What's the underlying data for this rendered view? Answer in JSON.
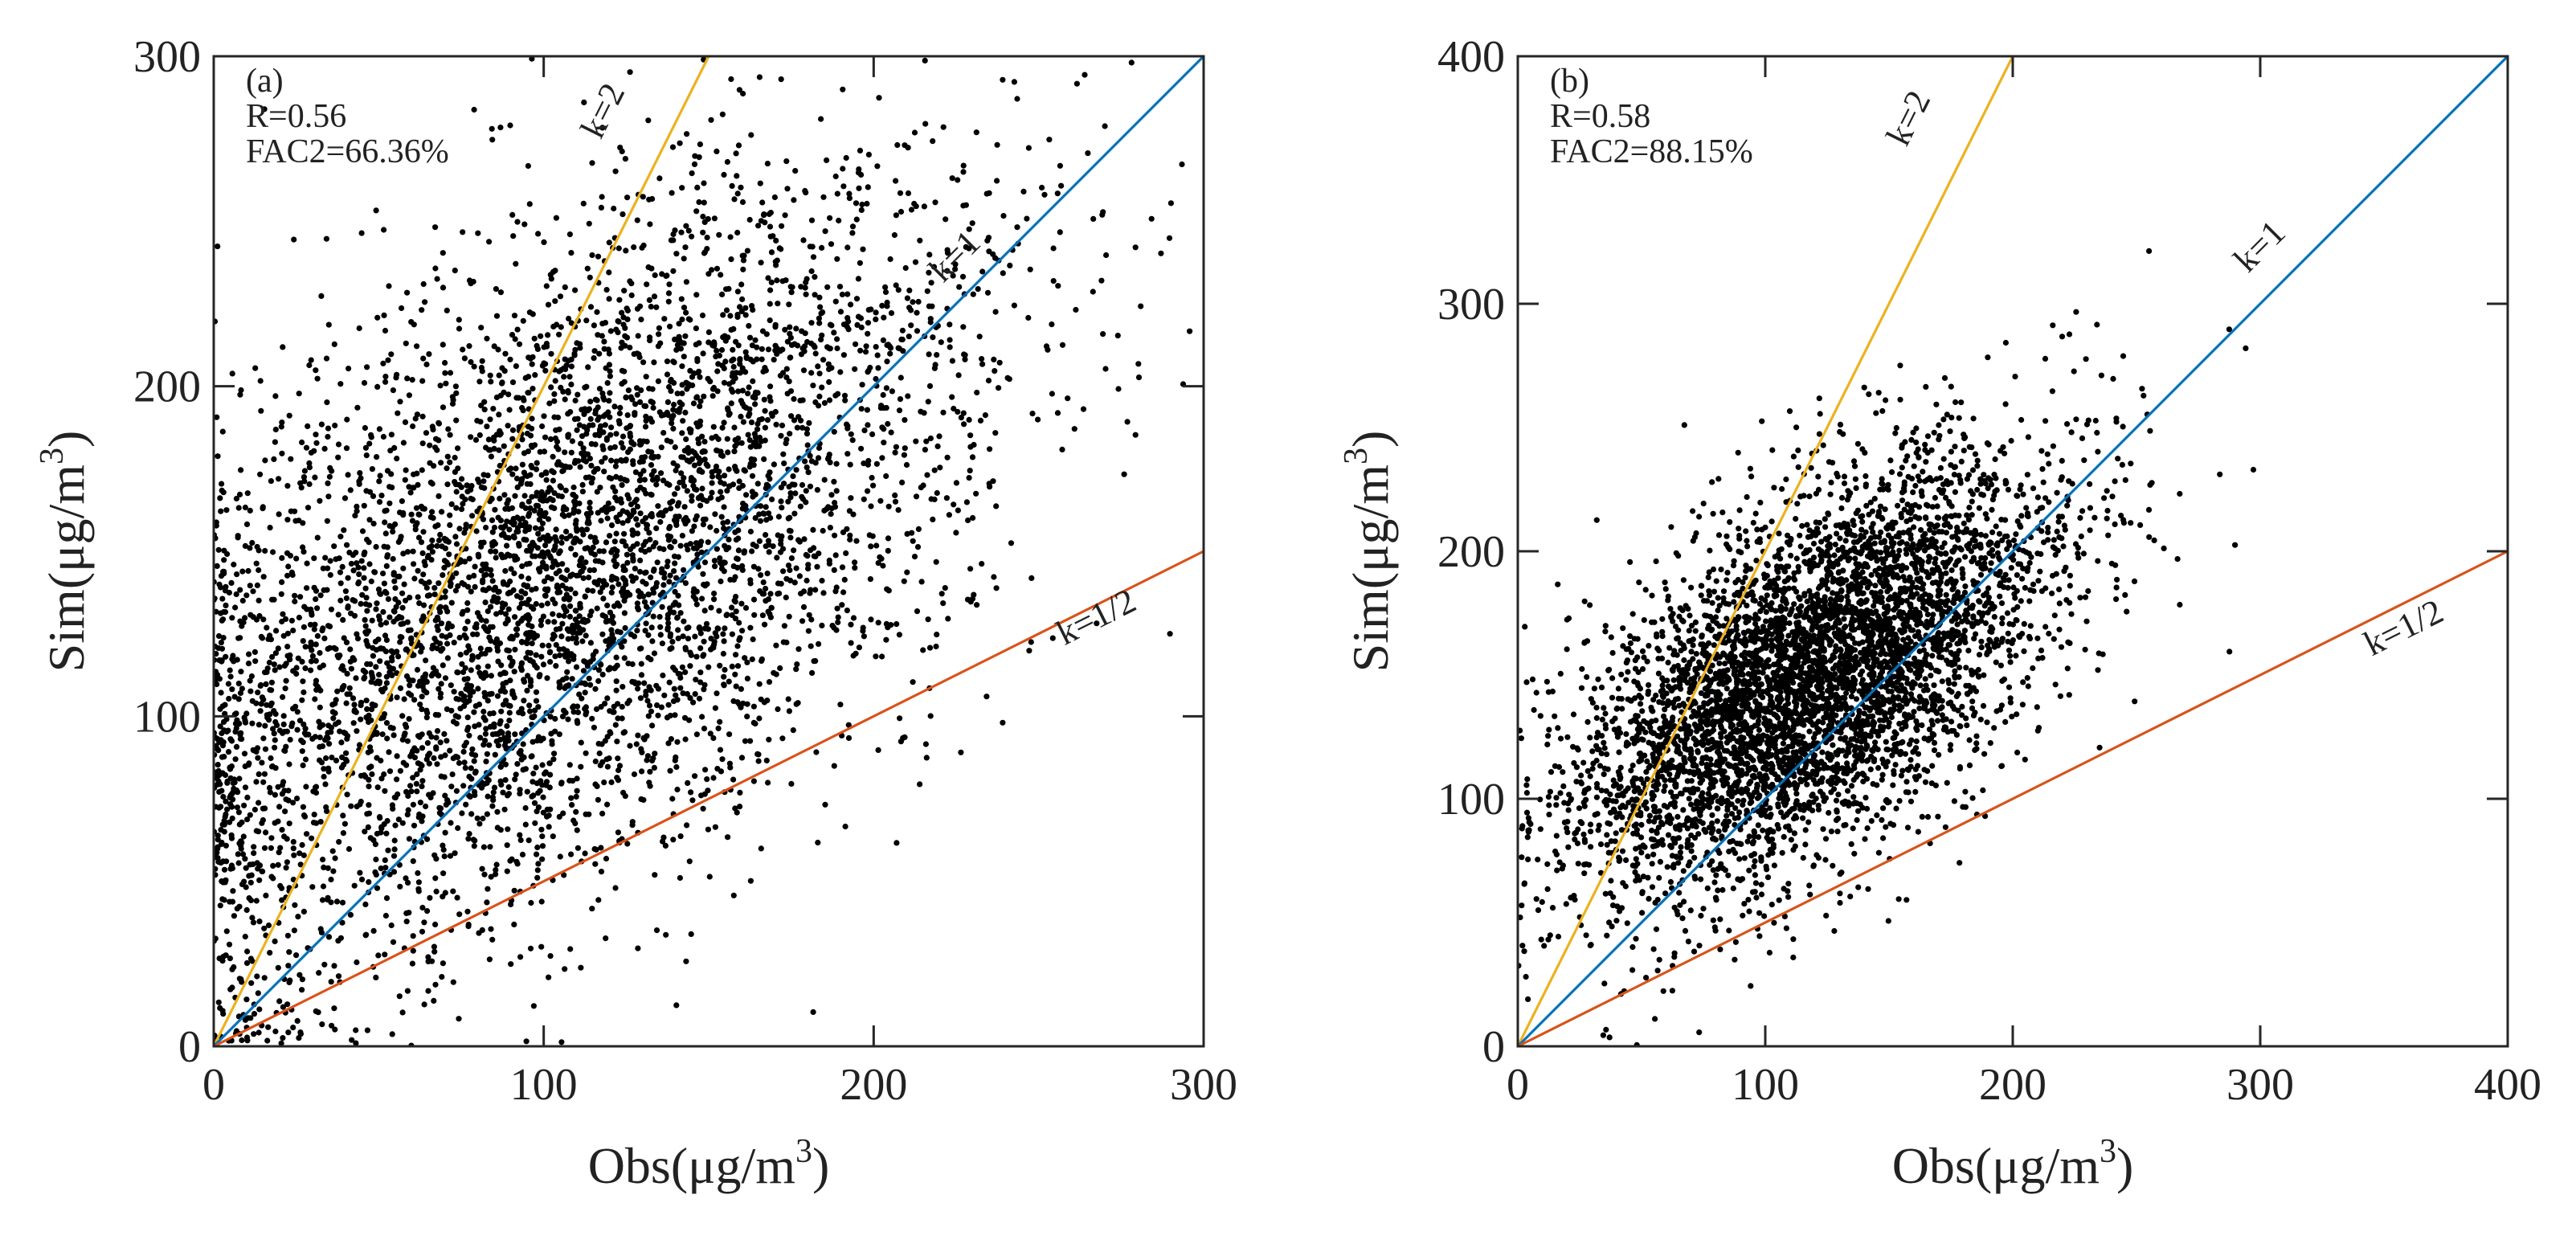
{
  "colors": {
    "points": "#000000",
    "k2_line": "#EDB120",
    "k1_line": "#0072BD",
    "khalf_line": "#D95319",
    "axes": "#262626"
  },
  "chart_data": [
    {
      "type": "scatter",
      "panel_label": "(a)",
      "xlabel": "Obs(μg/m",
      "ylabel": "Sim(μg/m",
      "unit_sup": "3",
      "unit_close": ")",
      "xlim": [
        0,
        300
      ],
      "ylim": [
        0,
        300
      ],
      "xticks": [
        0,
        100,
        200,
        300
      ],
      "yticks": [
        0,
        100,
        200,
        300
      ],
      "xtick_labels": [
        "0",
        "100",
        "200",
        "300"
      ],
      "ytick_labels": [
        "0",
        "100",
        "200",
        "300"
      ],
      "stats": {
        "r": "R=0.56",
        "fac2": "FAC2=66.36%"
      },
      "reference_lines": [
        {
          "key": "k2",
          "label": "k=2",
          "slope": 2,
          "label_x": 121,
          "label_y": 282
        },
        {
          "key": "k1",
          "label": "k=1",
          "slope": 1,
          "label_x": 227,
          "label_y": 237
        },
        {
          "key": "khalf",
          "label": "k=1/2",
          "slope": 0.5,
          "label_x": 269,
          "label_y": 127
        }
      ],
      "point_count": 5200,
      "scatter_distribution": {
        "obs_mean": 105,
        "obs_sd": 65,
        "sim_mean": 145,
        "sim_sd": 58,
        "correlation": 0.56
      }
    },
    {
      "type": "scatter",
      "panel_label": "(b)",
      "xlabel": "Obs(μg/m",
      "ylabel": "Sim(μg/m",
      "unit_sup": "3",
      "unit_close": ")",
      "xlim": [
        0,
        400
      ],
      "ylim": [
        0,
        400
      ],
      "xticks": [
        0,
        100,
        200,
        300,
        400
      ],
      "yticks": [
        0,
        100,
        200,
        300,
        400
      ],
      "xtick_labels": [
        "0",
        "100",
        "200",
        "300",
        "400"
      ],
      "ytick_labels": [
        "0",
        "100",
        "200",
        "300",
        "400"
      ],
      "stats": {
        "r": "R=0.58",
        "fac2": "FAC2=88.15%"
      },
      "reference_lines": [
        {
          "key": "k2",
          "label": "k=2",
          "slope": 2,
          "label_x": 162,
          "label_y": 373
        },
        {
          "key": "k1",
          "label": "k=1",
          "slope": 1,
          "label_x": 303,
          "label_y": 320
        },
        {
          "key": "khalf",
          "label": "k=1/2",
          "slope": 0.5,
          "label_x": 360,
          "label_y": 165
        }
      ],
      "point_count": 5200,
      "scatter_distribution": {
        "obs_mean": 120,
        "obs_sd": 48,
        "sim_mean": 150,
        "sim_sd": 44,
        "correlation": 0.58
      }
    }
  ]
}
